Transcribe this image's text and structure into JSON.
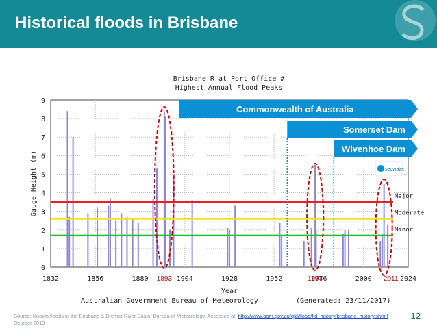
{
  "slide": {
    "title": "Historical floods in Brisbane",
    "page_number": "12",
    "source_prefix": "Source: Known floods in the Brisbane & Bremer River Basin, Bureau of Meteorology. Accessed at: ",
    "source_url": "http://www.bom.gov.au/qld/flood/fld_history/brisbane_history.shtml",
    "source_date": "October 2019",
    "brand_logo": "seqwater",
    "colors": {
      "header": "#138a96",
      "banner": "#0b90d6",
      "flood_bar": "#8c86e0",
      "major": "#ee1c24",
      "moderate": "#f2e41c",
      "minor": "#2bbf2b",
      "highlight_ellipse": "#e00000"
    }
  },
  "chart_data": {
    "type": "bar",
    "title": "Brisbane R at Port Office #",
    "subtitle": "Highest Annual Flood Peaks",
    "xlabel": "Year",
    "ylabel": "Gauge Height (m)",
    "xlim": [
      1832,
      2024
    ],
    "ylim": [
      0,
      9
    ],
    "x_ticks": [
      1832,
      1856,
      1880,
      1904,
      1928,
      1952,
      1976,
      2000,
      2024
    ],
    "y_ticks": [
      0,
      1,
      2,
      3,
      4,
      5,
      6,
      7,
      8,
      9
    ],
    "credit": "Australian Government Bureau of Meteorology",
    "generated": "(Generated: 23/11/2017)",
    "flood_peaks": [
      {
        "year": 1841,
        "value": 8.4
      },
      {
        "year": 1842,
        "value": 2.7
      },
      {
        "year": 1844,
        "value": 7.0
      },
      {
        "year": 1852,
        "value": 2.9
      },
      {
        "year": 1857,
        "value": 3.2
      },
      {
        "year": 1863,
        "value": 3.3
      },
      {
        "year": 1864,
        "value": 3.7
      },
      {
        "year": 1867,
        "value": 2.5
      },
      {
        "year": 1870,
        "value": 2.9
      },
      {
        "year": 1873,
        "value": 2.7
      },
      {
        "year": 1876,
        "value": 2.6
      },
      {
        "year": 1879,
        "value": 2.4
      },
      {
        "year": 1887,
        "value": 3.7
      },
      {
        "year": 1889,
        "value": 5.3
      },
      {
        "year": 1893,
        "value": 8.4
      },
      {
        "year": 1893.5,
        "value": 8.1
      },
      {
        "year": 1896,
        "value": 2.0
      },
      {
        "year": 1898,
        "value": 5.0
      },
      {
        "year": 1908,
        "value": 3.6
      },
      {
        "year": 1927,
        "value": 2.1
      },
      {
        "year": 1928,
        "value": 2.0
      },
      {
        "year": 1931,
        "value": 3.3
      },
      {
        "year": 1955,
        "value": 2.4
      },
      {
        "year": 1956,
        "value": 1.7
      },
      {
        "year": 1974,
        "value": 5.5
      },
      {
        "year": 1972,
        "value": 2.1
      },
      {
        "year": 1968,
        "value": 1.4
      },
      {
        "year": 1974.5,
        "value": 2.0
      },
      {
        "year": 1989,
        "value": 1.8
      },
      {
        "year": 1990,
        "value": 2.0
      },
      {
        "year": 1992,
        "value": 2.0
      },
      {
        "year": 2009,
        "value": 1.4
      },
      {
        "year": 2011,
        "value": 4.5
      },
      {
        "year": 2013,
        "value": 2.3
      },
      {
        "year": 2010,
        "value": 1.8
      }
    ],
    "thresholds": [
      {
        "name": "Major",
        "value": 3.5
      },
      {
        "name": "Moderate",
        "value": 2.6
      },
      {
        "name": "Minor",
        "value": 1.7
      }
    ],
    "annotations": {
      "banners": [
        {
          "label": "Commonwealth of Australia",
          "from_year": 1901
        },
        {
          "label": "Somerset Dam",
          "from_year": 1959
        },
        {
          "label": "Wivenhoe Dam",
          "from_year": 1984
        }
      ],
      "highlighted_years": [
        {
          "label": "1893",
          "year": 1893
        },
        {
          "label": "1974",
          "year": 1974
        },
        {
          "label": "2011",
          "year": 2011
        }
      ]
    }
  }
}
